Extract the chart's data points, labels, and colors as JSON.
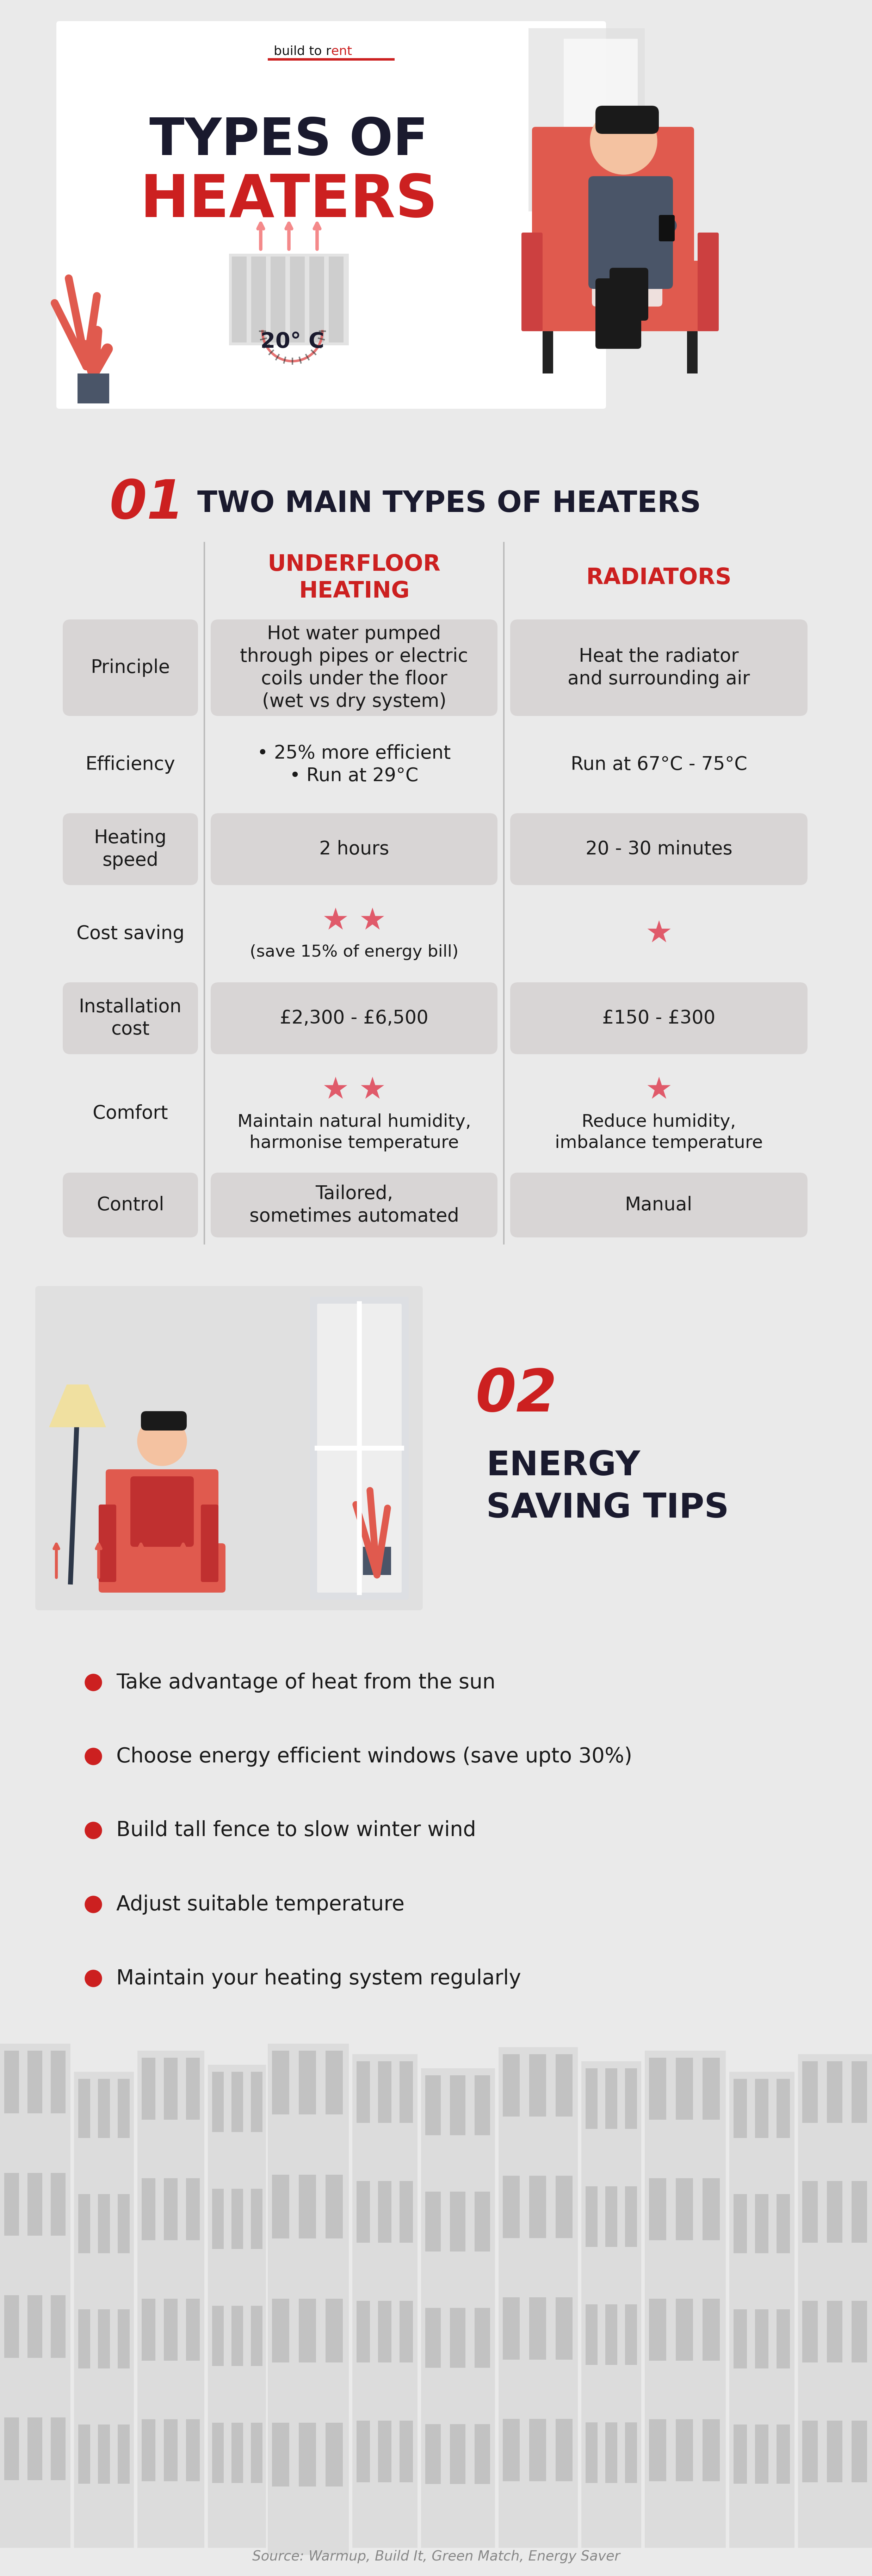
{
  "bg_color": "#EAEAEA",
  "white_color": "#FFFFFF",
  "red_color": "#CC2020",
  "dark_color": "#1a1a2e",
  "gray_row": "#D8D5D5",
  "text_dark": "#1a1a1a",
  "orange_red": "#E05A4E",
  "star_color": "#E05A6A",
  "section1_num": "01",
  "section1_title": "TWO MAIN TYPES OF HEATERS",
  "section2_num": "02",
  "section2_line1": "ENERGY",
  "section2_line2": "SAVING TIPS",
  "col1_header_line1": "UNDERFLOOR",
  "col1_header_line2": "HEATING",
  "col2_header": "RADIATORS",
  "rows": [
    {
      "label": "Principle",
      "col1": "Hot water pumped\nthrough pipes or electric\ncoils under the floor\n(wet vs dry system)",
      "col2": "Heat the radiator\nand surrounding air",
      "shaded": true
    },
    {
      "label": "Efficiency",
      "col1": "• 25% more efficient\n• Run at 29°C",
      "col2": "Run at 67°C - 75°C",
      "shaded": false
    },
    {
      "label": "Heating\nspeed",
      "col1": "2 hours",
      "col2": "20 - 30 minutes",
      "shaded": true
    },
    {
      "label": "Cost saving",
      "col1_stars": 2,
      "col1_sub": "(save 15% of energy bill)",
      "col2_stars": 1,
      "shaded": false
    },
    {
      "label": "Installation\ncost",
      "col1": "£2,300 - £6,500",
      "col2": "£150 - £300",
      "shaded": true
    },
    {
      "label": "Comfort",
      "col1_stars": 2,
      "col1_sub": "Maintain natural humidity,\nharmonise temperature",
      "col2_stars": 1,
      "col2_sub": "Reduce humidity,\nimbalance temperature",
      "shaded": false
    },
    {
      "label": "Control",
      "col1": "Tailored,\nsometimes automated",
      "col2": "Manual",
      "shaded": true
    }
  ],
  "tips": [
    "Take advantage of heat from the sun",
    "Choose energy efficient windows (save upto 30%)",
    "Build tall fence to slow winter wind",
    "Adjust suitable temperature",
    "Maintain your heating system regularly"
  ],
  "source_text": "Source: Warmup, Build It, Green Match, Energy Saver"
}
